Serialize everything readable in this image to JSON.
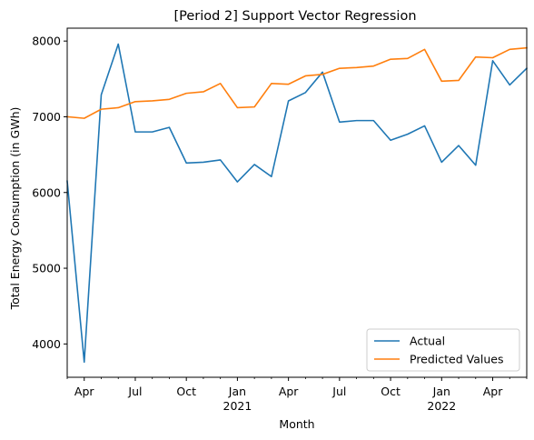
{
  "chart_data": {
    "type": "line",
    "title": "[Period 2] Support Vector Regression",
    "xlabel": "Month",
    "ylabel": "Total Energy Consumption (in GWh)",
    "x": [
      "2020-03",
      "2020-04",
      "2020-05",
      "2020-06",
      "2020-07",
      "2020-08",
      "2020-09",
      "2020-10",
      "2020-11",
      "2020-12",
      "2021-01",
      "2021-02",
      "2021-03",
      "2021-04",
      "2021-05",
      "2021-06",
      "2021-07",
      "2021-08",
      "2021-09",
      "2021-10",
      "2021-11",
      "2021-12",
      "2022-01",
      "2022-02",
      "2022-03",
      "2022-04",
      "2022-05",
      "2022-06"
    ],
    "xlim_index": [
      0,
      27
    ],
    "ylim": [
      3560,
      8170
    ],
    "yticks": [
      4000,
      5000,
      6000,
      7000,
      8000
    ],
    "xticks": [
      {
        "index": 1,
        "label": "Apr",
        "year": ""
      },
      {
        "index": 4,
        "label": "Jul",
        "year": ""
      },
      {
        "index": 7,
        "label": "Oct",
        "year": ""
      },
      {
        "index": 10,
        "label": "Jan",
        "year": "2021"
      },
      {
        "index": 13,
        "label": "Apr",
        "year": ""
      },
      {
        "index": 16,
        "label": "Jul",
        "year": ""
      },
      {
        "index": 19,
        "label": "Oct",
        "year": ""
      },
      {
        "index": 22,
        "label": "Jan",
        "year": "2022"
      },
      {
        "index": 25,
        "label": "Apr",
        "year": ""
      }
    ],
    "series": [
      {
        "name": "Actual",
        "color": "#1f77b4",
        "values": [
          6150,
          3760,
          7290,
          7960,
          6800,
          6800,
          6860,
          6390,
          6400,
          6430,
          6140,
          6370,
          6210,
          7210,
          7320,
          7590,
          6930,
          6950,
          6950,
          6690,
          6770,
          6880,
          6400,
          6620,
          6360,
          7740,
          7420,
          7640
        ]
      },
      {
        "name": "Predicted Values",
        "color": "#ff7f0e",
        "values": [
          7000,
          6980,
          7100,
          7120,
          7200,
          7210,
          7230,
          7310,
          7330,
          7440,
          7120,
          7130,
          7440,
          7430,
          7540,
          7560,
          7640,
          7650,
          7670,
          7760,
          7770,
          7890,
          7470,
          7480,
          7790,
          7780,
          7890,
          7910
        ]
      }
    ],
    "legend_position": "bottom-right",
    "grid": false
  }
}
